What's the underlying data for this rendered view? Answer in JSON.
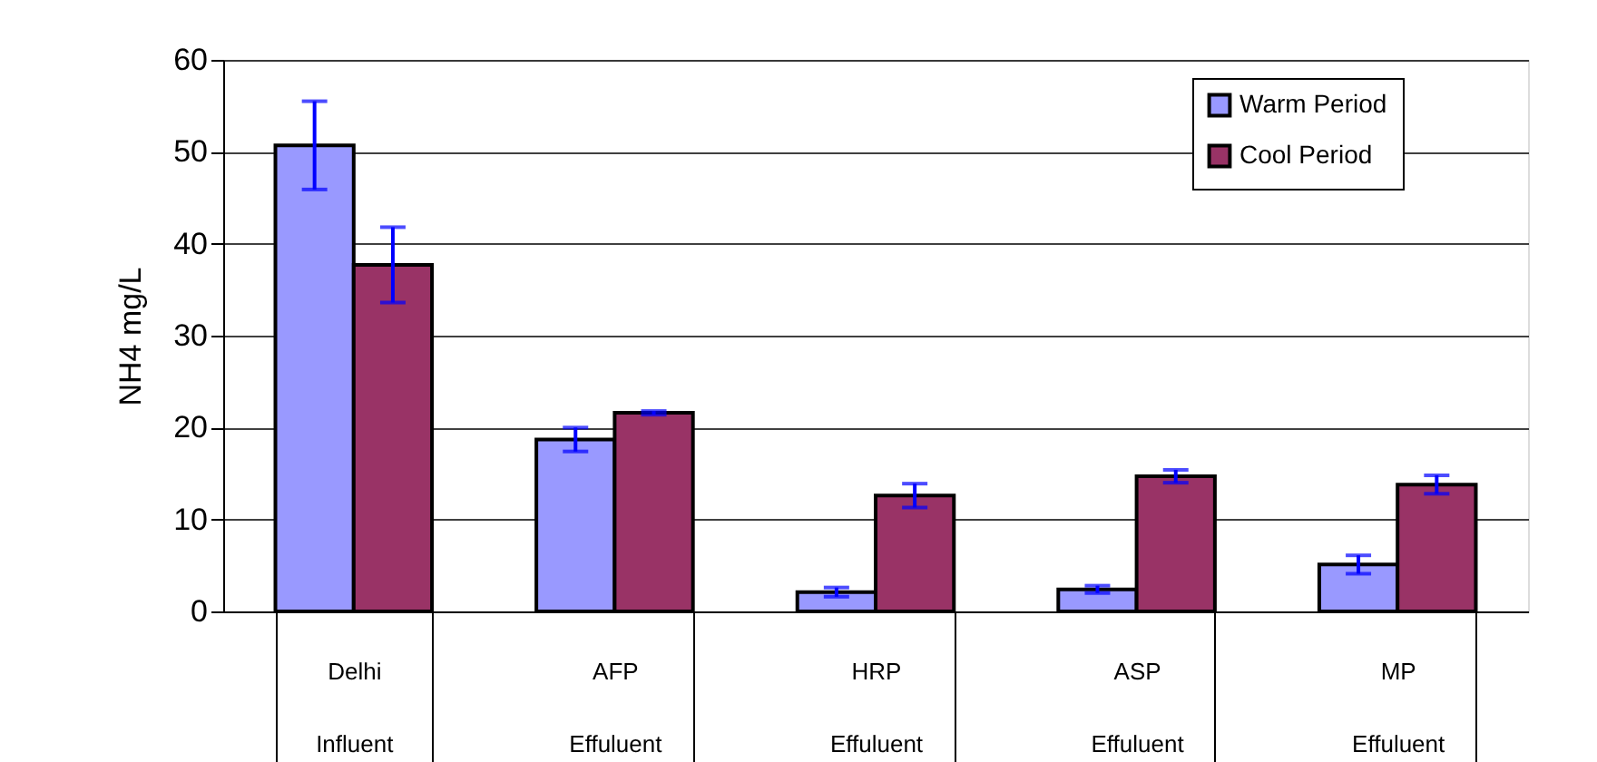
{
  "chart_data": {
    "type": "bar",
    "ylabel": "NH4  mg/L",
    "categories": [
      "Delhi\nInfluent",
      "AFP\nEffuluent",
      "HRP\nEffuluent",
      "ASP\nEffuluent",
      "MP\nEffuluent"
    ],
    "series": [
      {
        "name": "Warm Period",
        "color": "#9999ff",
        "values": [
          50.7,
          18.7,
          2.1,
          2.4,
          5.1
        ],
        "errors": [
          4.8,
          1.3,
          0.5,
          0.4,
          1.0
        ]
      },
      {
        "name": "Cool   Period",
        "color": "#993366",
        "values": [
          37.7,
          21.6,
          12.6,
          14.7,
          13.8
        ],
        "errors": [
          4.1,
          0.2,
          1.3,
          0.7,
          1.0
        ]
      }
    ],
    "ylim": [
      0,
      60
    ],
    "yticks": [
      0,
      10,
      20,
      30,
      40,
      50,
      60
    ],
    "grid": "y",
    "legend": "top right"
  }
}
